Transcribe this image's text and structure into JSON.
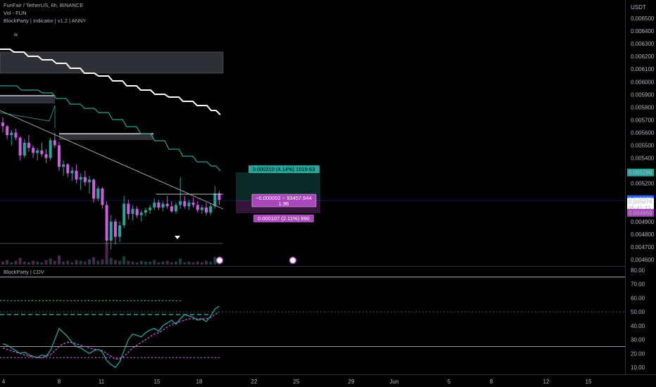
{
  "header": {
    "symbol_line": "FunFair / TetherUS, 6h, BINANCE",
    "vol_line": "Vol - FUN",
    "indicator_line": "BlockParty | Indicator | v1.2 | ANNY",
    "cdv_title": "BlockParty | CDV"
  },
  "price_axis": {
    "currency": "USDT",
    "ticks": [
      "0.006500",
      "0.006400",
      "0.006300",
      "0.006200",
      "0.006100",
      "0.006000",
      "0.005900",
      "0.005800",
      "0.005700",
      "0.005600",
      "0.005500",
      "0.005400",
      "0.005200",
      "0.004900",
      "0.004800",
      "0.004700",
      "0.004600"
    ],
    "tag_upper": "0.005286",
    "tag_last": "0.005076",
    "tag_current": "0.005074",
    "tag_countdown": "05:41:33",
    "tag_lower": "0.004969",
    "colors": {
      "upper": "#26a69a",
      "last": "#2962ff",
      "lower": "#ab47bc"
    }
  },
  "cdv_axis": {
    "ticks": [
      "80.00",
      "70.00",
      "60.00",
      "50.00",
      "40.00",
      "30.00",
      "20.00",
      "10.00"
    ]
  },
  "time_axis": {
    "ticks": [
      "4",
      "8",
      "11",
      "15",
      "18",
      "22",
      "25",
      "29",
      "Jun",
      "5",
      "8",
      "12",
      "15"
    ]
  },
  "measure": {
    "top_label": "0.000210 (4.14%) 1019.63",
    "mid_label_1": "−0.000002 − 93457.944",
    "mid_label_2": "1.96",
    "bottom_label": "0.000107 (2.11%) 990"
  },
  "chart_data": [
    {
      "type": "candlestick",
      "title": "FunFair / TetherUS, 6h, BINANCE",
      "ylabel": "USDT",
      "ylim": [
        0.00455,
        0.0066
      ],
      "x_ticks": [
        "4",
        "8",
        "11",
        "15",
        "18",
        "22",
        "25",
        "29",
        "Jun",
        "5",
        "8",
        "12",
        "15"
      ],
      "candles": [
        [
          0.00568,
          0.00572,
          0.0056,
          0.00565
        ],
        [
          0.00565,
          0.00566,
          0.00555,
          0.00558
        ],
        [
          0.00558,
          0.00562,
          0.0055,
          0.0056
        ],
        [
          0.0056,
          0.00563,
          0.00554,
          0.00556
        ],
        [
          0.00556,
          0.00557,
          0.00538,
          0.00542
        ],
        [
          0.00542,
          0.00555,
          0.0054,
          0.00552
        ],
        [
          0.00552,
          0.00558,
          0.00545,
          0.00548
        ],
        [
          0.00548,
          0.0055,
          0.0054,
          0.00544
        ],
        [
          0.00544,
          0.00548,
          0.00538,
          0.00546
        ],
        [
          0.00546,
          0.00552,
          0.00541,
          0.00543
        ],
        [
          0.00543,
          0.00547,
          0.00536,
          0.0054
        ],
        [
          0.0054,
          0.00556,
          0.00538,
          0.00554
        ],
        [
          0.00554,
          0.0056,
          0.00548,
          0.0055
        ],
        [
          0.0055,
          0.00553,
          0.0053,
          0.00533
        ],
        [
          0.00533,
          0.00538,
          0.00526,
          0.00535
        ],
        [
          0.00535,
          0.00536,
          0.00525,
          0.00528
        ],
        [
          0.00528,
          0.00533,
          0.00522,
          0.0053
        ],
        [
          0.0053,
          0.00535,
          0.0052,
          0.00523
        ],
        [
          0.00523,
          0.00528,
          0.00515,
          0.00525
        ],
        [
          0.00525,
          0.0053,
          0.00518,
          0.00521
        ],
        [
          0.00521,
          0.00526,
          0.00512,
          0.00523
        ],
        [
          0.00523,
          0.00524,
          0.00505,
          0.00508
        ],
        [
          0.00508,
          0.00518,
          0.00506,
          0.00516
        ],
        [
          0.00516,
          0.00517,
          0.005,
          0.00503
        ],
        [
          0.00503,
          0.00506,
          0.0047,
          0.00475
        ],
        [
          0.00475,
          0.00495,
          0.00468,
          0.0049
        ],
        [
          0.0049,
          0.00492,
          0.00472,
          0.00478
        ],
        [
          0.00478,
          0.0049,
          0.00474,
          0.00487
        ],
        [
          0.00487,
          0.0051,
          0.00485,
          0.00504
        ],
        [
          0.00504,
          0.00507,
          0.00492,
          0.00496
        ],
        [
          0.00496,
          0.00503,
          0.00491,
          0.005
        ],
        [
          0.005,
          0.00502,
          0.00493,
          0.00495
        ],
        [
          0.00495,
          0.00499,
          0.0049,
          0.00497
        ],
        [
          0.00497,
          0.00501,
          0.00494,
          0.00499
        ],
        [
          0.00499,
          0.00503,
          0.00496,
          0.00501
        ],
        [
          0.00501,
          0.00508,
          0.00499,
          0.00505
        ],
        [
          0.00505,
          0.00507,
          0.00499,
          0.00501
        ],
        [
          0.00501,
          0.00506,
          0.00498,
          0.00504
        ],
        [
          0.00504,
          0.0051,
          0.005,
          0.00502
        ],
        [
          0.00502,
          0.00506,
          0.00497,
          0.00498
        ],
        [
          0.00498,
          0.00505,
          0.00496,
          0.00503
        ],
        [
          0.00503,
          0.00525,
          0.005,
          0.00506
        ],
        [
          0.00506,
          0.0051,
          0.005,
          0.00502
        ],
        [
          0.00502,
          0.00507,
          0.00499,
          0.00505
        ],
        [
          0.00505,
          0.00509,
          0.00501,
          0.00503
        ],
        [
          0.00503,
          0.00506,
          0.00497,
          0.00499
        ],
        [
          0.00499,
          0.00503,
          0.00496,
          0.00501
        ],
        [
          0.00501,
          0.00505,
          0.00495,
          0.00497
        ],
        [
          0.00497,
          0.00504,
          0.00495,
          0.00502
        ],
        [
          0.00502,
          0.00518,
          0.005,
          0.00512
        ],
        [
          0.00512,
          0.00514,
          0.00503,
          0.00507
        ]
      ],
      "volume": [
        4,
        6,
        3,
        5,
        9,
        4,
        3,
        5,
        4,
        3,
        6,
        8,
        5,
        12,
        4,
        5,
        3,
        6,
        5,
        4,
        7,
        10,
        5,
        7,
        30,
        9,
        6,
        5,
        11,
        5,
        4,
        3,
        5,
        4,
        4,
        6,
        3,
        4,
        5,
        3,
        4,
        8,
        3,
        4,
        3,
        4,
        3,
        5,
        4,
        10,
        5
      ]
    },
    {
      "type": "line",
      "title": "BlockParty | CDV",
      "ylim": [
        5,
        82
      ],
      "levels": [
        75,
        50,
        25
      ],
      "x_ticks": [
        "4",
        "8",
        "11",
        "15",
        "18",
        "22",
        "25",
        "29",
        "Jun",
        "5",
        "8",
        "12",
        "15"
      ],
      "series": [
        {
          "values": [
            27,
            26,
            24,
            22,
            20,
            21,
            19,
            18,
            17,
            19,
            18,
            22,
            30,
            38,
            35,
            32,
            28,
            25,
            24,
            22,
            20,
            22,
            23,
            21,
            15,
            12,
            10,
            14,
            22,
            30,
            34,
            33,
            32,
            35,
            37,
            38,
            36,
            40,
            42,
            44,
            41,
            45,
            48,
            47,
            46,
            44,
            45,
            43,
            47,
            52,
            54
          ]
        },
        {
          "values": [
            24,
            23,
            22,
            21,
            20,
            19,
            18,
            18,
            17,
            17,
            18,
            19,
            22,
            25,
            27,
            28,
            28,
            27,
            26,
            25,
            24,
            23,
            23,
            22,
            20,
            18,
            16,
            16,
            18,
            21,
            24,
            26,
            28,
            30,
            32,
            34,
            35,
            37,
            39,
            41,
            42,
            43,
            44,
            45,
            45,
            45,
            45,
            45,
            46,
            48,
            50
          ]
        }
      ]
    }
  ]
}
